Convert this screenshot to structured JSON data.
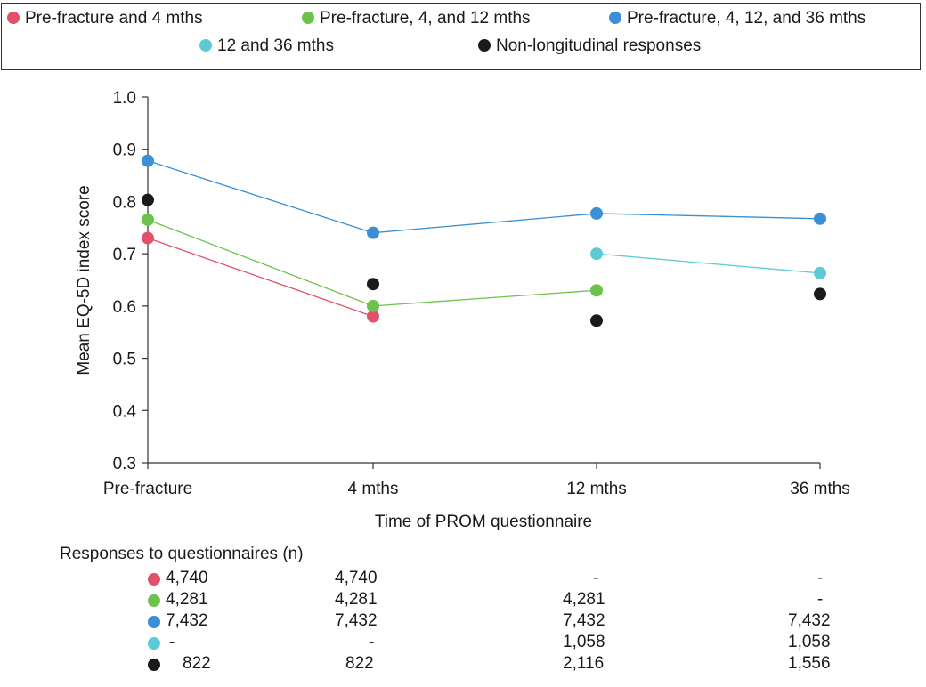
{
  "colors": {
    "red": "#e2506a",
    "green": "#6cc24a",
    "blue": "#3a8fd6",
    "cyan": "#5ccbd6",
    "black": "#1a1a1a",
    "axis": "#333333"
  },
  "legend": [
    {
      "label": "Pre-fracture and 4 mths",
      "color": "#e2506a"
    },
    {
      "label": "Pre-fracture, 4, and 12 mths",
      "color": "#6cc24a"
    },
    {
      "label": "Pre-fracture, 4, 12, and 36 mths",
      "color": "#3a8fd6"
    },
    {
      "label": "12 and 36 mths",
      "color": "#5ccbd6"
    },
    {
      "label": "Non-longitudinal responses",
      "color": "#1a1a1a"
    }
  ],
  "chart_data": {
    "type": "line",
    "categories": [
      "Pre-fracture",
      "4 mths",
      "12 mths",
      "36 mths"
    ],
    "xlabel": "Time of PROM questionnaire",
    "ylabel": "Mean EQ-5D index score",
    "ylim": [
      0.3,
      1.0
    ],
    "yticks": [
      "0.3",
      "0.4",
      "0.5",
      "0.6",
      "0.7",
      "0.8",
      "0.9",
      "1.0"
    ],
    "grid": false,
    "legend_position": "top",
    "series": [
      {
        "name": "Pre-fracture and 4 mths",
        "color": "#e2506a",
        "connected": true,
        "values": [
          0.73,
          0.58,
          null,
          null
        ]
      },
      {
        "name": "Pre-fracture, 4, and 12 mths",
        "color": "#6cc24a",
        "connected": true,
        "values": [
          0.765,
          0.6,
          0.63,
          null
        ]
      },
      {
        "name": "Pre-fracture, 4, 12, and 36 mths",
        "color": "#3a8fd6",
        "connected": true,
        "values": [
          0.878,
          0.74,
          0.777,
          0.767
        ]
      },
      {
        "name": "12 and 36 mths",
        "color": "#5ccbd6",
        "connected": true,
        "values": [
          null,
          null,
          0.7,
          0.663
        ]
      },
      {
        "name": "Non-longitudinal responses",
        "color": "#1a1a1a",
        "connected": false,
        "values": [
          0.803,
          0.642,
          0.572,
          0.623
        ]
      }
    ]
  },
  "responses": {
    "title": "Responses to questionnaires (n)",
    "rows": [
      {
        "color": "#e2506a",
        "values": [
          "4,740",
          "4,740",
          "-",
          "-"
        ]
      },
      {
        "color": "#6cc24a",
        "values": [
          "4,281",
          "4,281",
          "4,281",
          "-"
        ]
      },
      {
        "color": "#3a8fd6",
        "values": [
          "7,432",
          "7,432",
          "7,432",
          "7,432"
        ]
      },
      {
        "color": "#5ccbd6",
        "values": [
          "-",
          "-",
          "1,058",
          "1,058"
        ]
      },
      {
        "color": "#1a1a1a",
        "values": [
          "822",
          "822",
          "2,116",
          "1,556"
        ]
      }
    ]
  }
}
